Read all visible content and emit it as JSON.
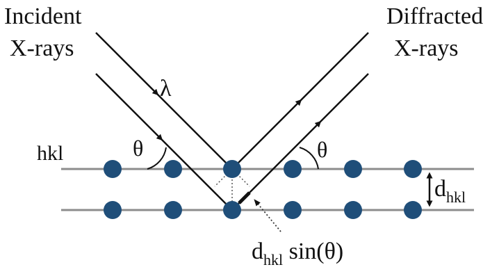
{
  "labels": {
    "incident_line1": "Incident",
    "incident_line2": "X-rays",
    "diffracted_line1": "Diffracted",
    "diffracted_line2": "X-rays",
    "wavelength": "λ",
    "plane": "hkl",
    "theta_left": "θ",
    "theta_right": "θ",
    "spacing_d": "d",
    "spacing_sub": "hkl",
    "path_d": "d",
    "path_sub": "hkl",
    "path_sin": " sin(θ)"
  },
  "colors": {
    "atom": "#1f4e79",
    "plane_line": "#8c8c8c",
    "ray": "#111111"
  }
}
